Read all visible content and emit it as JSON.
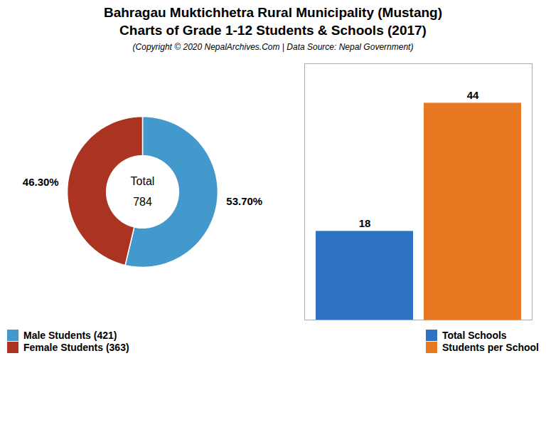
{
  "chart_data": [
    {
      "type": "donut",
      "title": "Bahragau Muktichhetra Rural Municipality (Mustang)\nCharts of Grade 1-12 Students & Schools (2017)",
      "subtitle": "(Copyright © 2020 NepalArchives.Com | Data Source: Nepal Government)",
      "categories": [
        "Male Students (421)",
        "Female Students (363)"
      ],
      "values": [
        53.7,
        46.3
      ],
      "value_labels": [
        "53.70%",
        "46.30%"
      ],
      "colors": [
        "#4499cc",
        "#aa3322"
      ],
      "annotations": [
        "Total",
        "784"
      ],
      "data_labels": true,
      "legend": "lower left"
    },
    {
      "type": "bar",
      "categories": [
        "Total Schools",
        "Students per School"
      ],
      "values": [
        18,
        44
      ],
      "colors": [
        "#2f72c4",
        "#e87722"
      ],
      "ylim": [
        0,
        52
      ],
      "tick_labels": false,
      "data_labels": true,
      "legend": "lower right"
    }
  ]
}
